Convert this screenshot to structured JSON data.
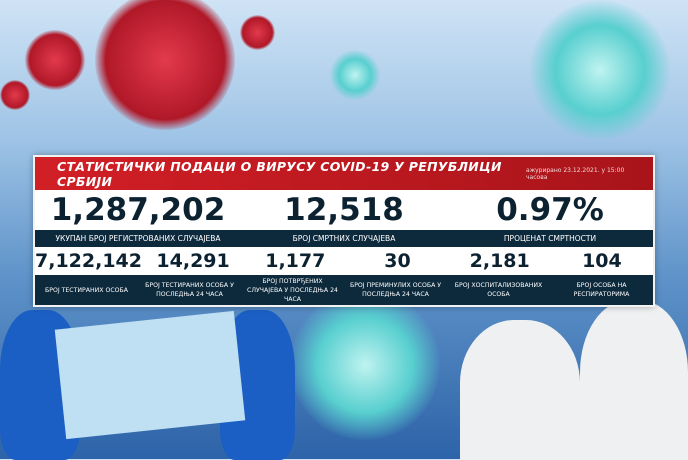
{
  "header": {
    "title": "СТАТИСТИЧКИ ПОДАЦИ О ВИРУСУ COVID-19 У РЕПУБЛИЦИ СРБИЈИ",
    "updated": "ажурирано 23.12.2021. у 15:00 часова"
  },
  "main_stats": [
    {
      "value": "1,287,202",
      "label": "УКУПАН БРОЈ РЕГИСТРОВАНИХ СЛУЧАЈЕВА"
    },
    {
      "value": "12,518",
      "label": "БРОЈ СМРТНИХ СЛУЧАЈЕВА"
    },
    {
      "value": "0.97%",
      "label": "ПРОЦЕНАТ СМРТНОСТИ"
    }
  ],
  "detail_stats": [
    {
      "value": "7,122,142",
      "label": "БРОЈ ТЕСТИРАНИХ ОСОБА"
    },
    {
      "value": "14,291",
      "label": "БРОЈ ТЕСТИРАНИХ ОСОБА У ПОСЛЕДЊА 24 ЧАСА"
    },
    {
      "value": "1,177",
      "label": "БРОЈ ПОТВРЂЕНИХ СЛУЧАЈЕВА У ПОСЛЕДЊА 24 ЧАСА"
    },
    {
      "value": "30",
      "label": "БРОЈ ПРЕМИНУЛИХ ОСОБА У ПОСЛЕДЊА 24 ЧАСА"
    },
    {
      "value": "2,181",
      "label": "БРОЈ ХОСПИТАЛИЗОВАНИХ ОСОБА"
    },
    {
      "value": "104",
      "label": "БРОЈ ОСОБА НА РЕСПИРАТОРИМА"
    }
  ],
  "colors": {
    "header_red": "#c81b22",
    "label_bar": "#0d2a3d",
    "number_text": "#0d2230"
  }
}
